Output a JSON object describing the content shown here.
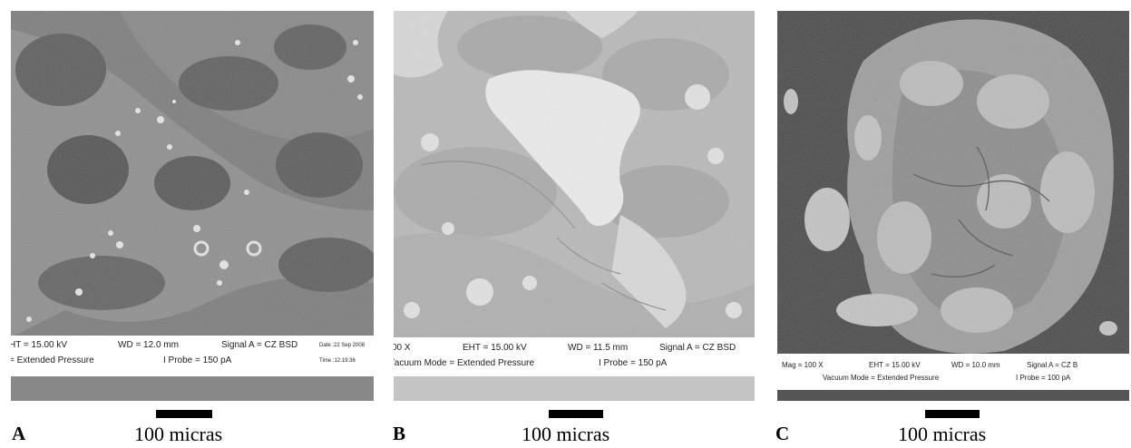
{
  "panels": [
    {
      "letter": "A",
      "scale_label": "100 micras",
      "info": {
        "eht": "HT = 15.00 kV",
        "wd": "WD = 12.0 mm",
        "signal": "Signal A = CZ BSD",
        "date": "Date :22 Sep 2008",
        "mode": "= Extended Pressure",
        "probe": "I Probe =    150 pA",
        "time": "Time :12:19:36"
      }
    },
    {
      "letter": "B",
      "scale_label": "100 micras",
      "info": {
        "mag": "00 X",
        "eht": "EHT = 15.00 kV",
        "wd": "WD = 11.5 mm",
        "signal": "Signal A = CZ BSD",
        "mode": "/acuum Mode = Extended Pressure",
        "probe": "I Probe =    150 pA"
      }
    },
    {
      "letter": "C",
      "scale_label": "100 micras",
      "info": {
        "mag": "Mag =    100 X",
        "eht": "EHT = 15.00 kV",
        "wd": "WD = 10.0 mm",
        "signal": "Signal A = CZ B",
        "mode": "Vacuum Mode = Extended Pressure",
        "probe": "I Probe =    100 pA"
      }
    }
  ]
}
